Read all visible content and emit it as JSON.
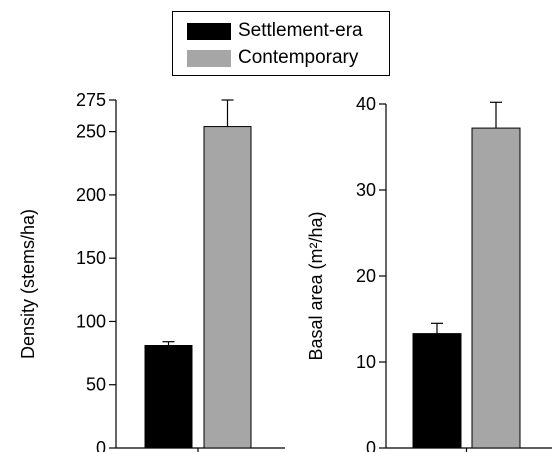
{
  "legend": {
    "items": [
      {
        "label": "Settlement-era",
        "color": "#000000"
      },
      {
        "label": "Contemporary",
        "color": "#a6a6a6"
      }
    ]
  },
  "chart_data": [
    {
      "type": "bar",
      "title": "",
      "xlabel": "",
      "ylabel": "Density (stems/ha)",
      "ylim": [
        0,
        275
      ],
      "yticks": [
        0,
        50,
        100,
        150,
        200,
        250,
        275
      ],
      "series": [
        {
          "name": "Settlement-era",
          "values": [
            81
          ],
          "error": [
            3
          ],
          "color": "#000000"
        },
        {
          "name": "Contemporary",
          "values": [
            254
          ],
          "error": [
            21
          ],
          "color": "#a6a6a6"
        }
      ]
    },
    {
      "type": "bar",
      "title": "",
      "xlabel": "",
      "ylabel": "Basal area (m²/ha)",
      "ylim": [
        0,
        40
      ],
      "yticks": [
        0,
        10,
        20,
        30,
        40
      ],
      "series": [
        {
          "name": "Settlement-era",
          "values": [
            13.3
          ],
          "error": [
            1.2
          ],
          "color": "#000000"
        },
        {
          "name": "Contemporary",
          "values": [
            37.2
          ],
          "error": [
            3.0
          ],
          "color": "#a6a6a6"
        }
      ]
    }
  ]
}
